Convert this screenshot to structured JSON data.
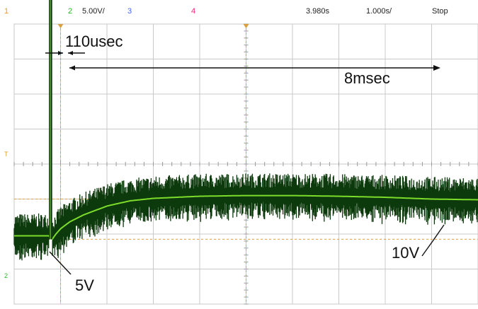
{
  "header": {
    "ch1": "1",
    "ch2": "2",
    "ch2_scale": "5.00V/",
    "ch3": "3",
    "ch4": "4",
    "time_offset": "3.980s",
    "time_div": "1.000s/",
    "status": "Stop"
  },
  "annotations": {
    "pulse_width": "110usec",
    "duration": "8msec",
    "level_low": "5V",
    "level_high": "10V"
  },
  "markers": {
    "trigger": "T",
    "ch2_ground": "2"
  },
  "colors": {
    "ch1": "#e0a020",
    "ch2": "#22bb22",
    "ch3": "#4466ff",
    "ch4": "#ff2277",
    "grid": "#c8c8c8",
    "trace_noise": "#0d3a0d",
    "trace_mean": "#7cdc2a",
    "cursor": "#d9a040"
  },
  "chart_data": {
    "type": "line",
    "title": "",
    "xlabel": "",
    "ylabel": "",
    "grid": true,
    "xlim": [
      0,
      10
    ],
    "ylim": [
      -4,
      4
    ],
    "cursor_x": [
      1,
      5
    ],
    "cursor_y": [
      -1,
      -2.15
    ],
    "series": [
      {
        "x": [
          0,
          0.75,
          0.78,
          0.8,
          0.82,
          0.9,
          1.0,
          1.2,
          1.5,
          2.0,
          2.5,
          3.0,
          4.0,
          5.0,
          6.0,
          7.0,
          8.0,
          9.0,
          10.0
        ],
        "values": [
          -2.05,
          -2.05,
          5.5,
          5.5,
          -2.15,
          -2.0,
          -1.85,
          -1.65,
          -1.45,
          -1.2,
          -1.05,
          -0.98,
          -0.92,
          -0.9,
          -0.9,
          -0.92,
          -0.95,
          -1.0,
          -1.02
        ]
      }
    ]
  }
}
